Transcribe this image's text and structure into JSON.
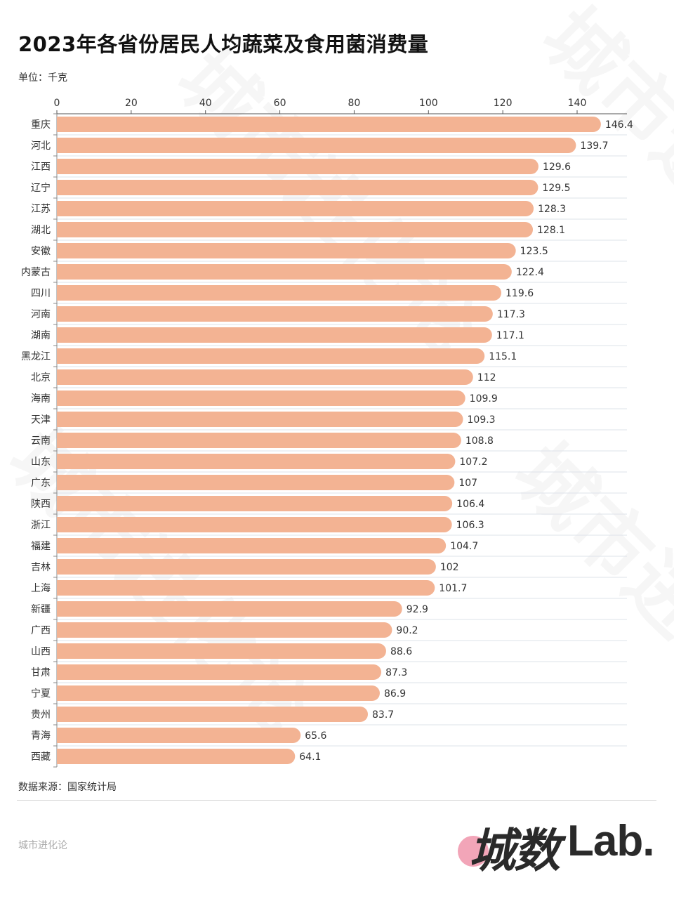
{
  "title": "2023年各省份居民人均蔬菜及食用菌消费量",
  "unit_label": "单位：千克",
  "source_label": "数据来源：国家统计局",
  "brand_label": "城市进化论",
  "logo": {
    "chinese": "城数",
    "latin": "Lab."
  },
  "watermark_text": "城市进化论",
  "colors": {
    "bar": "#F3B393",
    "axis": "#555555",
    "grid": "#dde3ea",
    "label": "#333333"
  },
  "chart_data": {
    "type": "bar",
    "orientation": "horizontal",
    "title": "2023年各省份居民人均蔬菜及食用菌消费量",
    "xlabel": "",
    "ylabel": "",
    "unit": "千克",
    "xlim": [
      0,
      153
    ],
    "x_ticks": [
      0,
      20,
      40,
      60,
      80,
      100,
      120,
      140
    ],
    "x_axis_position": "top",
    "grid": false,
    "legend": "none",
    "categories": [
      "重庆",
      "河北",
      "江西",
      "辽宁",
      "江苏",
      "湖北",
      "安徽",
      "内蒙古",
      "四川",
      "河南",
      "湖南",
      "黑龙江",
      "北京",
      "海南",
      "天津",
      "云南",
      "山东",
      "广东",
      "陕西",
      "浙江",
      "福建",
      "吉林",
      "上海",
      "新疆",
      "广西",
      "山西",
      "甘肃",
      "宁夏",
      "贵州",
      "青海",
      "西藏"
    ],
    "values": [
      146.4,
      139.7,
      129.6,
      129.5,
      128.3,
      128.1,
      123.5,
      122.4,
      119.6,
      117.3,
      117.1,
      115.1,
      112,
      109.9,
      109.3,
      108.8,
      107.2,
      107,
      106.4,
      106.3,
      104.7,
      102,
      101.7,
      92.9,
      90.2,
      88.6,
      87.3,
      86.9,
      83.7,
      65.6,
      64.1
    ],
    "value_labels": [
      "146.4",
      "139.7",
      "129.6",
      "129.5",
      "128.3",
      "128.1",
      "123.5",
      "122.4",
      "119.6",
      "117.3",
      "117.1",
      "115.1",
      "112",
      "109.9",
      "109.3",
      "108.8",
      "107.2",
      "107",
      "106.4",
      "106.3",
      "104.7",
      "102",
      "101.7",
      "92.9",
      "90.2",
      "88.6",
      "87.3",
      "86.9",
      "83.7",
      "65.6",
      "64.1"
    ],
    "source": "国家统计局"
  }
}
